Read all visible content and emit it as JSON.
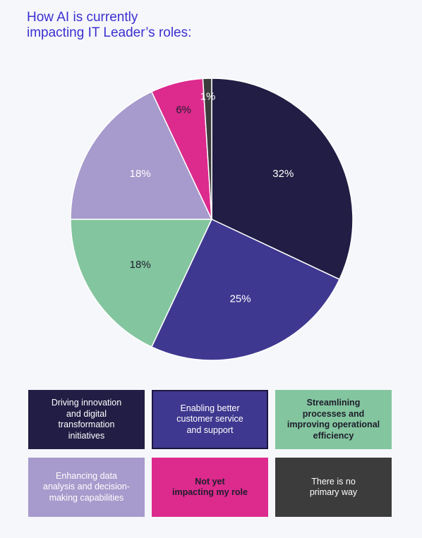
{
  "title_lines": [
    "How AI is currently",
    "impacting IT Leader’s roles:"
  ],
  "chart_data": {
    "type": "pie",
    "title": "How AI is currently impacting IT Leader’s roles:",
    "slices": [
      {
        "label": "Driving innovation and digital transformation initiatives",
        "value": 32,
        "display": "32%",
        "color": "#211d44"
      },
      {
        "label": "Enabling better customer service and support",
        "value": 25,
        "display": "25%",
        "color": "#3f3890"
      },
      {
        "label": "Streamlining processes and improving operational efficiency",
        "value": 18,
        "display": "18%",
        "color": "#83c59f"
      },
      {
        "label": "Enhancing data analysis and decision-making capabilities",
        "value": 18,
        "display": "18%",
        "color": "#a79acc"
      },
      {
        "label": "Not yet impacting my role",
        "value": 6,
        "display": "6%",
        "color": "#dc2a8d"
      },
      {
        "label": "There is no primary way",
        "value": 1,
        "display": "1%",
        "color": "#3c3c3c"
      }
    ],
    "legend": [
      {
        "lines": [
          "Driving innovation",
          "and digital",
          "transformation",
          "initiatives"
        ],
        "bg": "#211d44",
        "fg": "#ffffff",
        "bold": false
      },
      {
        "lines": [
          "Enabling better",
          "customer service",
          "and support"
        ],
        "bg": "#3f3890",
        "fg": "#ffffff",
        "bold": false
      },
      {
        "lines": [
          "Streamlining",
          "processes and",
          "improving operational",
          "efficiency"
        ],
        "bg": "#83c59f",
        "fg": "#1d1d2b",
        "bold": true
      },
      {
        "lines": [
          "Enhancing data",
          "analysis and decision-",
          "making capabilities"
        ],
        "bg": "#a79acc",
        "fg": "#ffffff",
        "bold": false
      },
      {
        "lines": [
          "Not yet",
          "impacting my role"
        ],
        "bg": "#dc2a8d",
        "fg": "#1d1d2b",
        "bold": true
      },
      {
        "lines": [
          "There is no",
          "primary way"
        ],
        "bg": "#3c3c3c",
        "fg": "#ffffff",
        "bold": false
      }
    ]
  }
}
